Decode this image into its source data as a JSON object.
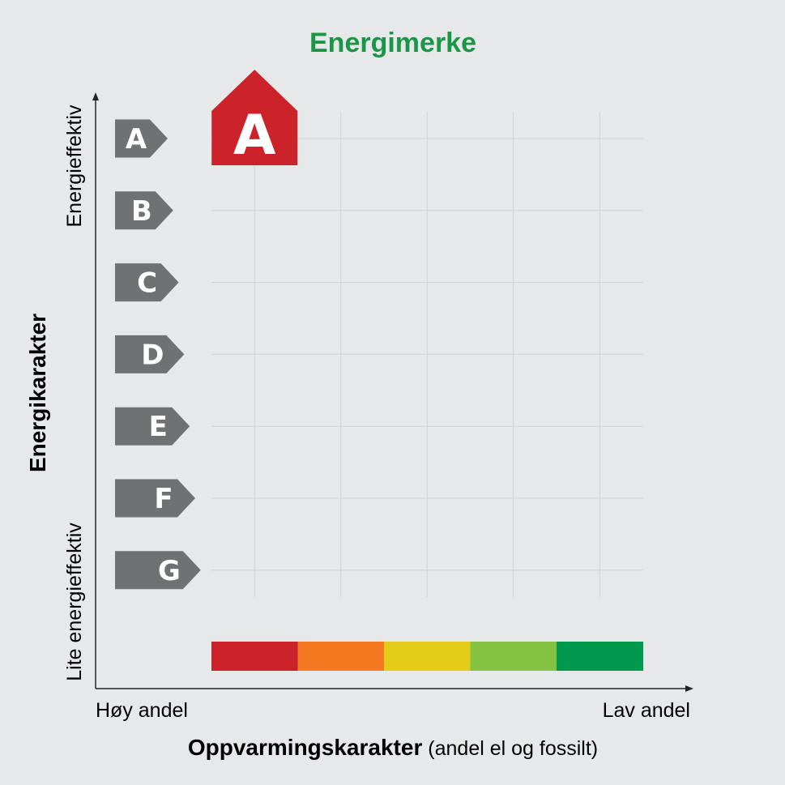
{
  "chart_data": {
    "type": "scatter",
    "title": "Energimerke",
    "ylabel": "Energikarakter",
    "y_top_label": "Energieffektiv",
    "y_bottom_label": "Lite energieffektiv",
    "xlabel_bold": "Oppvarmingskarakter",
    "xlabel_rest": " (andel el og fossilt)",
    "x_left_label": "Høy andel",
    "x_right_label": "Lav andel",
    "energy_grades": [
      "A",
      "B",
      "C",
      "D",
      "E",
      "F",
      "G"
    ],
    "heating_scale_colors": [
      "#cc2229",
      "#f47920",
      "#e6cc1a",
      "#84c241",
      "#00994e"
    ],
    "point": {
      "energy_grade": "A",
      "heating_grade_index": 0,
      "label": "A",
      "color": "#cc2229"
    },
    "grid": true
  },
  "colors": {
    "title": "#1a9646",
    "tag": "#707173",
    "grid": "#d0d1d2",
    "axis": "#222222"
  }
}
